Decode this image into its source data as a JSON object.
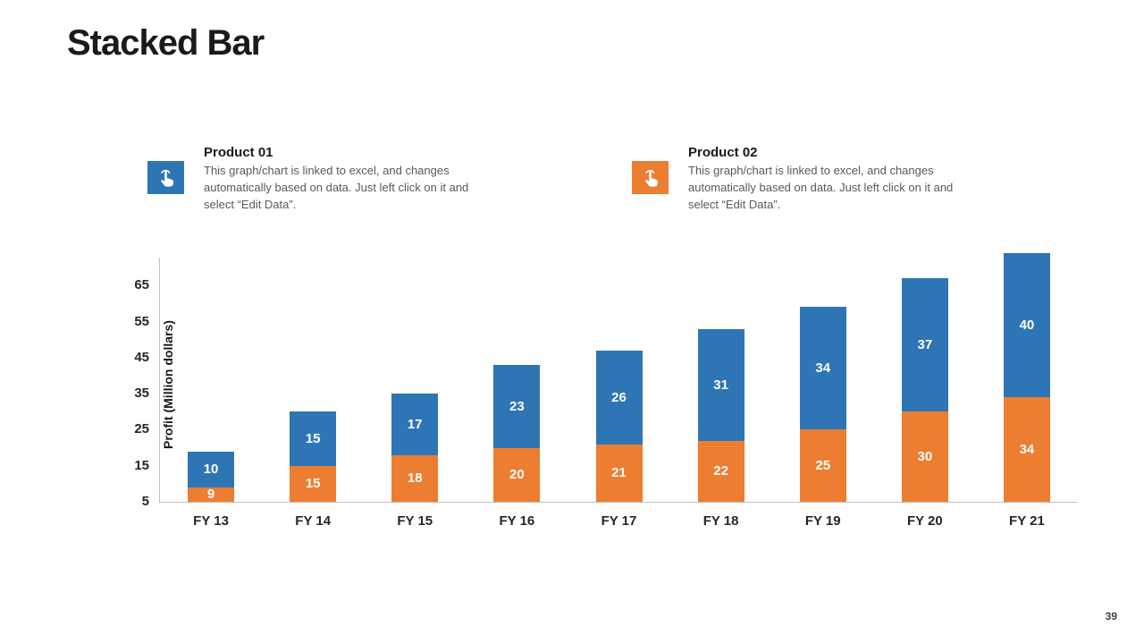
{
  "page": {
    "title": "Stacked Bar",
    "page_number": "39"
  },
  "legends": [
    {
      "title": "Product 01",
      "description": "This graph/chart is linked to excel, and changes automatically based on data. Just left click on it and select “Edit Data”.",
      "color": "#2E75B6"
    },
    {
      "title": "Product 02",
      "description": "This graph/chart is linked to excel, and changes automatically based on data. Just left click on it and select “Edit Data”.",
      "color": "#ED7D31"
    }
  ],
  "chart_data": {
    "type": "bar",
    "stacked": true,
    "title": "Stacked Bar",
    "xlabel": "",
    "ylabel": "Profit (Million dollars)",
    "categories": [
      "FY 13",
      "FY 14",
      "FY 15",
      "FY 16",
      "FY 17",
      "FY 18",
      "FY 19",
      "FY 20",
      "FY 21"
    ],
    "series": [
      {
        "name": "Product 02",
        "color": "#ED7D31",
        "values": [
          9,
          15,
          18,
          20,
          21,
          22,
          25,
          30,
          34
        ]
      },
      {
        "name": "Product 01",
        "color": "#2E75B6",
        "values": [
          10,
          15,
          17,
          23,
          26,
          31,
          34,
          37,
          40
        ]
      }
    ],
    "yticks": [
      5,
      15,
      25,
      35,
      45,
      55,
      65
    ],
    "ylim": [
      5,
      73
    ],
    "grid": false,
    "legend_position": "top-as-text-blocks"
  }
}
